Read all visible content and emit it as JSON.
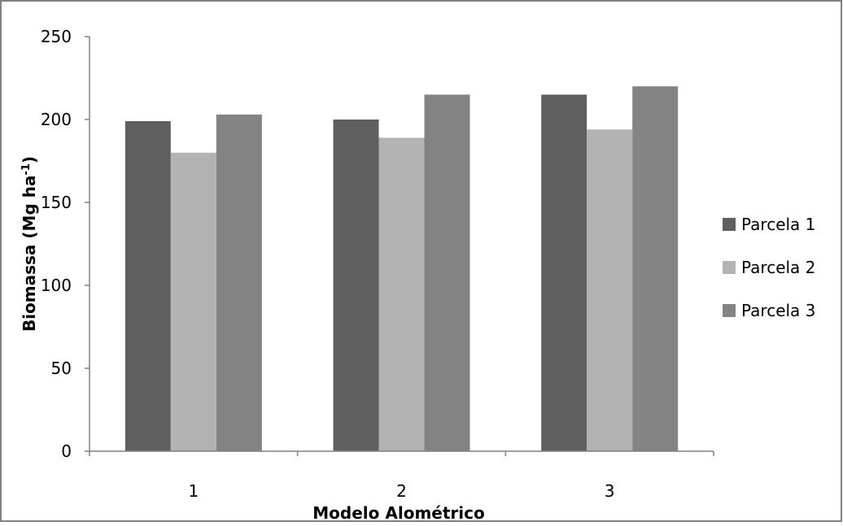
{
  "chart_data": {
    "type": "bar",
    "title": "",
    "xlabel": "Modelo Alométrico",
    "ylabel": "Biomassa (Mg ha",
    "ylabel_sup": "-1",
    "ylabel_close": ")",
    "categories": [
      "1",
      "2",
      "3"
    ],
    "ylim": [
      0,
      250
    ],
    "yticks": [
      0,
      50,
      100,
      150,
      200,
      250
    ],
    "grid": false,
    "legend_position": "right",
    "series": [
      {
        "name": "Parcela 1",
        "color": "#5f5f5f",
        "values": [
          199,
          200,
          215
        ]
      },
      {
        "name": "Parcela 2",
        "color": "#b3b3b3",
        "values": [
          180,
          189,
          194
        ]
      },
      {
        "name": "Parcela 3",
        "color": "#838383",
        "values": [
          203,
          215,
          220
        ]
      }
    ]
  }
}
